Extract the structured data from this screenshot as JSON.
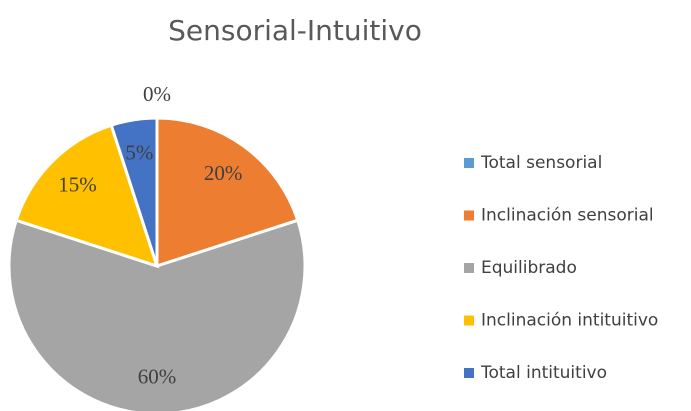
{
  "chart_data": {
    "type": "pie",
    "title": "Sensorial-Intuitivo",
    "categories": [
      "Total sensorial",
      "Inclinación sensorial",
      "Equilibrado",
      "Inclinación intituitivo",
      "Total intituitivo"
    ],
    "values": [
      0,
      20,
      60,
      15,
      5
    ],
    "value_labels": [
      "0%",
      "20%",
      "60%",
      "15%",
      "5%"
    ],
    "colors": [
      "#5b9bd5",
      "#ed7d31",
      "#a5a5a5",
      "#ffc000",
      "#4472c4"
    ],
    "legend": "right"
  }
}
